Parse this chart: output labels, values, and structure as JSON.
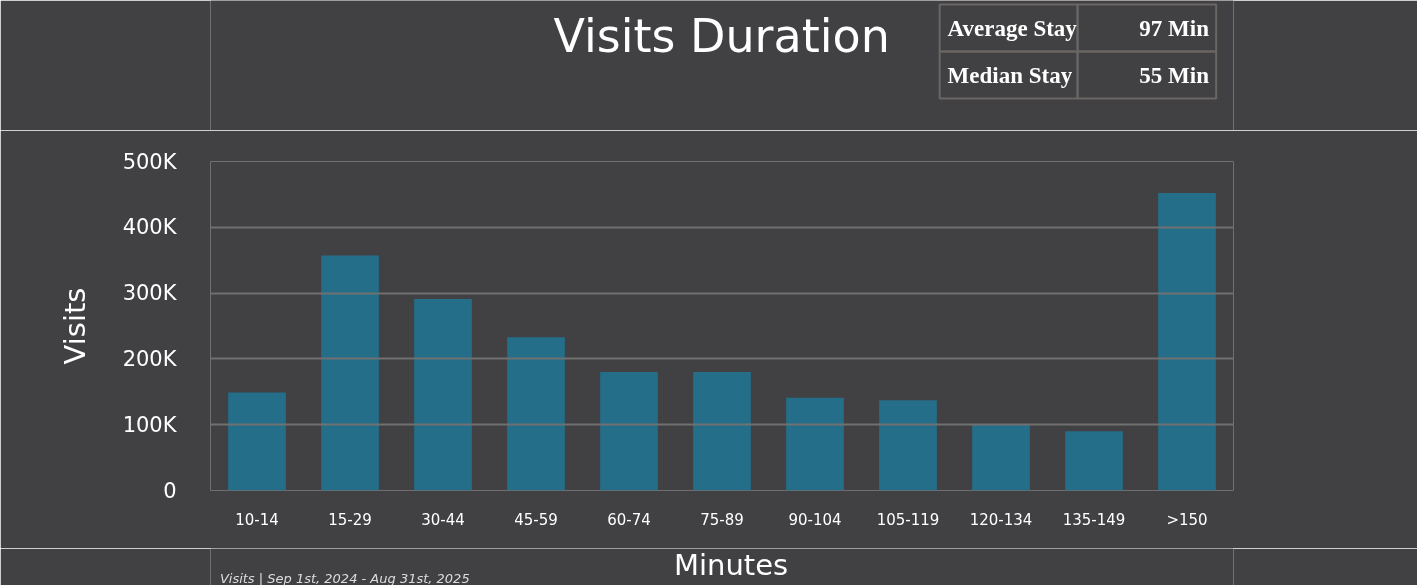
{
  "chart_data": {
    "type": "bar",
    "title": "Visits Duration",
    "xlabel": "Minutes",
    "ylabel": "Visits",
    "categories": [
      "10-14",
      "15-29",
      "30-44",
      "45-59",
      "60-74",
      "75-89",
      "90-104",
      "105-119",
      "120-134",
      "135-149",
      ">150"
    ],
    "values": [
      149000,
      357000,
      291000,
      233000,
      180000,
      180000,
      141000,
      137000,
      100000,
      90000,
      452000
    ],
    "color": "#246e8a",
    "ylim": [
      0,
      500000
    ],
    "yticks": [
      {
        "value": 0,
        "label": "0"
      },
      {
        "value": 100000,
        "label": "100K"
      },
      {
        "value": 200000,
        "label": "200K"
      },
      {
        "value": 300000,
        "label": "300K"
      },
      {
        "value": 400000,
        "label": "400K"
      },
      {
        "value": 500000,
        "label": "500K"
      }
    ],
    "grid": "y",
    "annotations": [
      "Average Stay",
      "97 Min",
      "Median Stay",
      "55 Min",
      "Visits | Sep 1st, 2024 - Aug 31st, 2025"
    ]
  }
}
